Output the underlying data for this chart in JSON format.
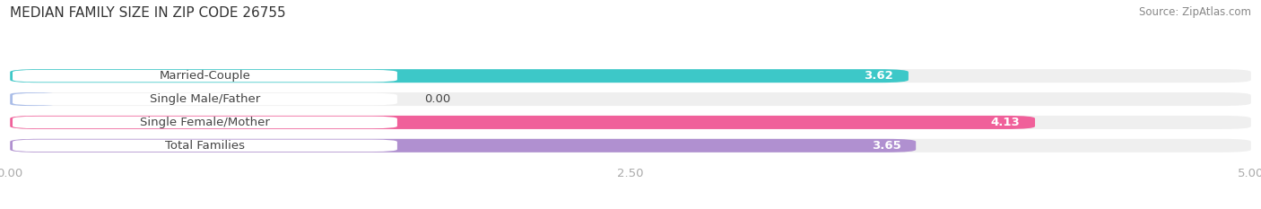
{
  "title": "MEDIAN FAMILY SIZE IN ZIP CODE 26755",
  "source": "Source: ZipAtlas.com",
  "categories": [
    "Married-Couple",
    "Single Male/Father",
    "Single Female/Mother",
    "Total Families"
  ],
  "values": [
    3.62,
    0.0,
    4.13,
    3.65
  ],
  "bar_colors": [
    "#3dc8c8",
    "#aabde8",
    "#f0609a",
    "#b090d0"
  ],
  "xlim": [
    0,
    5.0
  ],
  "xticks": [
    0.0,
    2.5,
    5.0
  ],
  "xtick_labels": [
    "0.00",
    "2.50",
    "5.00"
  ],
  "bar_height": 0.58,
  "label_fontsize": 9.5,
  "value_fontsize": 9.5,
  "title_fontsize": 11,
  "source_fontsize": 8.5,
  "background_color": "#ffffff",
  "bar_background_color": "#efefef",
  "label_bg_color": "#ffffff",
  "label_text_color": "#444444",
  "value_text_color": "#ffffff",
  "grid_color": "#ffffff",
  "tick_color": "#aaaaaa"
}
